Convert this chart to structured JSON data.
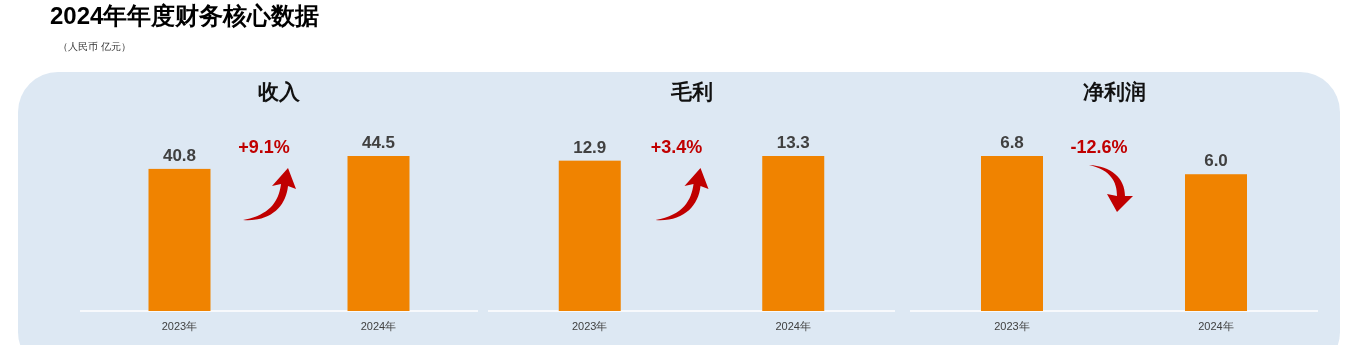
{
  "chart_data": [
    {
      "type": "other",
      "title": "2024年年度财务核心数据",
      "subtitle": "（人民币 亿元）"
    },
    {
      "type": "bar",
      "title": "收入",
      "categories": [
        "2023年",
        "2024年"
      ],
      "values": [
        40.8,
        44.5
      ],
      "color": "#f08300",
      "data_labels": true,
      "annotations": [
        "+9.1%"
      ]
    },
    {
      "type": "bar",
      "title": "毛利",
      "categories": [
        "2023年",
        "2024年"
      ],
      "values": [
        12.9,
        13.3
      ],
      "color": "#f08300",
      "data_labels": true,
      "annotations": [
        "+3.4%"
      ]
    },
    {
      "type": "bar",
      "title": "净利润",
      "categories": [
        "2023年",
        "2024年"
      ],
      "values": [
        6.8,
        6.0
      ],
      "value_labels": [
        "6.8",
        "6.0"
      ],
      "color": "#f08300",
      "annotations": [
        "-12.6%"
      ]
    }
  ]
}
